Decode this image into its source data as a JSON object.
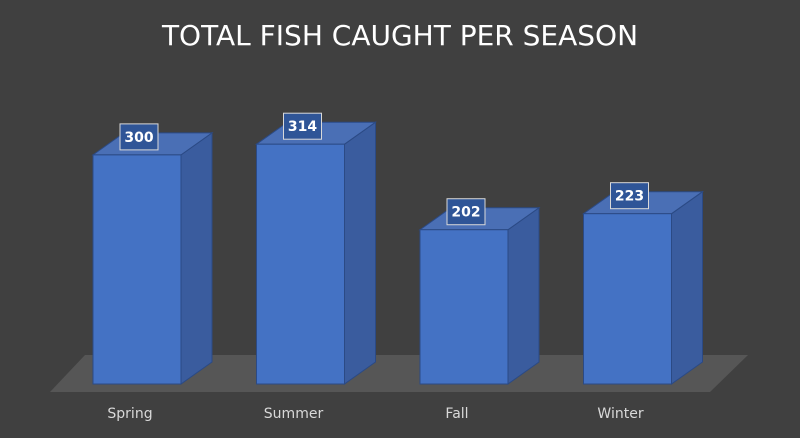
{
  "chart_data": {
    "type": "bar",
    "title": "TOTAL FISH CAUGHT PER SEASON",
    "categories": [
      "Spring",
      "Summer",
      "Fall",
      "Winter"
    ],
    "values": [
      300,
      314,
      202,
      223
    ],
    "style": "3d-column",
    "grid": false,
    "legend": "none",
    "colors": {
      "background": "#404040",
      "bar_front": "#4472C4",
      "bar_side": "#3A5C9E",
      "bar_top": "#4A6FB5",
      "floor": "#595959",
      "text": "#FFFFFF",
      "axis_text": "#D9D9D9",
      "label_box": "#2F5597",
      "label_border": "#D9D9D9"
    }
  }
}
